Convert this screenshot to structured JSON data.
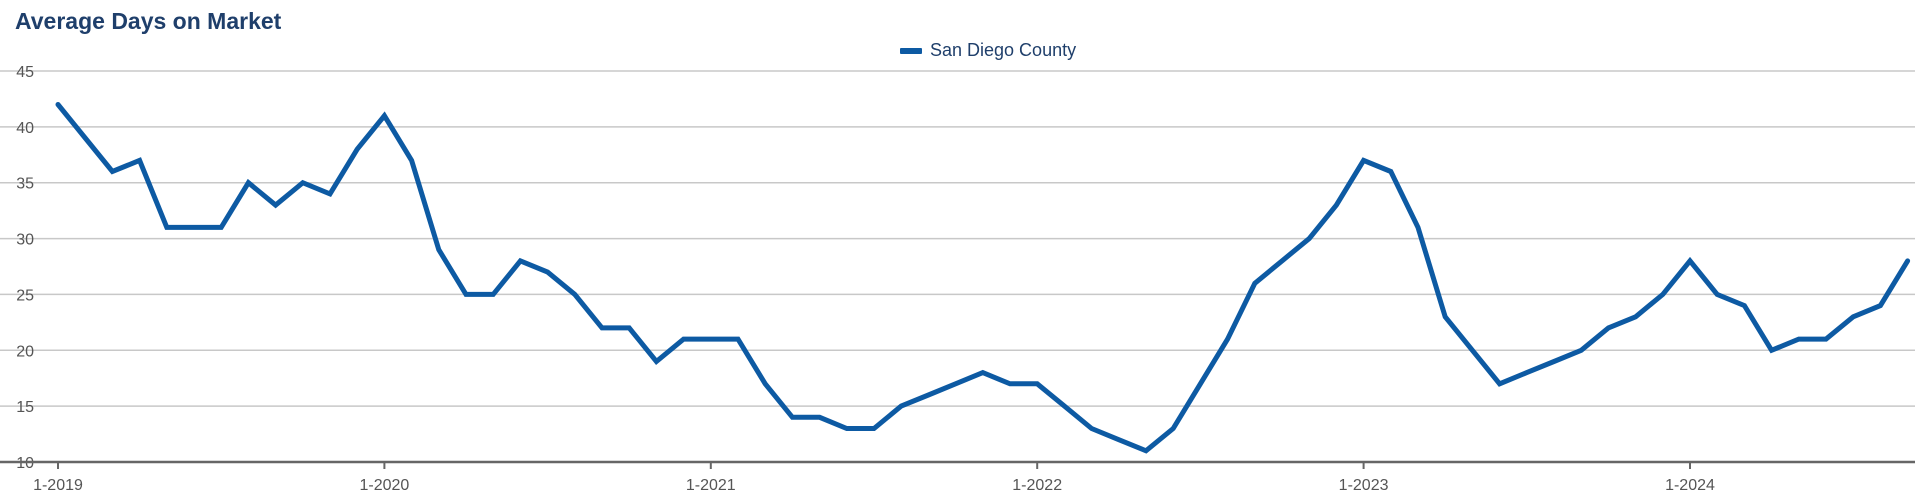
{
  "colors": {
    "series": "#0d5aa3",
    "grid": "#c8c8c8",
    "axis": "#666666",
    "title": "#1f3f6b"
  },
  "chart_data": {
    "type": "line",
    "title": "Average Days on Market",
    "xlabel": "",
    "ylabel": "",
    "ylim": [
      10,
      45
    ],
    "yticks": [
      10,
      15,
      20,
      25,
      30,
      35,
      40,
      45
    ],
    "grid": true,
    "legend_placement": "top-center",
    "x_tick_labels": [
      "1-2019",
      "1-2020",
      "1-2021",
      "1-2022",
      "1-2023",
      "1-2024"
    ],
    "x": [
      "1-2019",
      "2-2019",
      "3-2019",
      "4-2019",
      "5-2019",
      "6-2019",
      "7-2019",
      "8-2019",
      "9-2019",
      "10-2019",
      "11-2019",
      "12-2019",
      "1-2020",
      "2-2020",
      "3-2020",
      "4-2020",
      "5-2020",
      "6-2020",
      "7-2020",
      "8-2020",
      "9-2020",
      "10-2020",
      "11-2020",
      "12-2020",
      "1-2021",
      "2-2021",
      "3-2021",
      "4-2021",
      "5-2021",
      "6-2021",
      "7-2021",
      "8-2021",
      "9-2021",
      "10-2021",
      "11-2021",
      "12-2021",
      "1-2022",
      "2-2022",
      "3-2022",
      "4-2022",
      "5-2022",
      "6-2022",
      "7-2022",
      "8-2022",
      "9-2022",
      "10-2022",
      "11-2022",
      "12-2022",
      "1-2023",
      "2-2023",
      "3-2023",
      "4-2023",
      "5-2023",
      "6-2023",
      "7-2023",
      "8-2023",
      "9-2023",
      "10-2023",
      "11-2023",
      "12-2023",
      "1-2024",
      "2-2024",
      "3-2024",
      "4-2024",
      "5-2024",
      "6-2024",
      "7-2024",
      "8-2024",
      "9-2024"
    ],
    "series": [
      {
        "name": "San Diego County",
        "values": [
          42,
          39,
          36,
          37,
          31,
          31,
          31,
          35,
          33,
          35,
          34,
          38,
          41,
          37,
          29,
          25,
          25,
          28,
          27,
          25,
          22,
          22,
          19,
          21,
          21,
          21,
          17,
          14,
          14,
          13,
          13,
          15,
          16,
          17,
          18,
          17,
          17,
          15,
          13,
          12,
          11,
          13,
          17,
          21,
          26,
          28,
          30,
          33,
          37,
          36,
          31,
          23,
          20,
          17,
          18,
          19,
          20,
          22,
          23,
          25,
          28,
          25,
          24,
          20,
          21,
          21,
          23,
          24,
          28
        ]
      }
    ]
  }
}
